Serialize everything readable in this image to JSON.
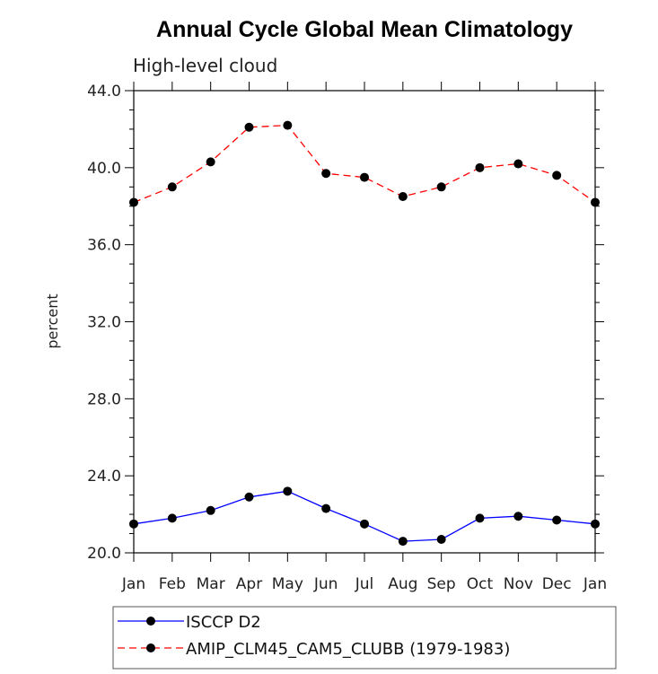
{
  "chart_data": {
    "type": "line",
    "title": "Annual Cycle Global Mean Climatology",
    "subtitle": "High-level cloud",
    "xlabel": "",
    "ylabel": "percent",
    "categories": [
      "Jan",
      "Feb",
      "Mar",
      "Apr",
      "May",
      "Jun",
      "Jul",
      "Aug",
      "Sep",
      "Oct",
      "Nov",
      "Dec",
      "Jan"
    ],
    "ylim": [
      20.0,
      44.0
    ],
    "yticks": [
      "20.0",
      "24.0",
      "28.0",
      "32.0",
      "36.0",
      "40.0",
      "44.0"
    ],
    "grid": false,
    "legend_position": "bottom",
    "series": [
      {
        "name": "ISCCP D2",
        "color": "#0000ff",
        "line_style": "solid",
        "marker": "filled-circle",
        "values": [
          21.5,
          21.8,
          22.2,
          22.9,
          23.2,
          22.3,
          21.5,
          20.6,
          20.7,
          21.8,
          21.9,
          21.7,
          21.5
        ]
      },
      {
        "name": "AMIP_CLM45_CAM5_CLUBB (1979-1983)",
        "color": "#ff0000",
        "line_style": "dashed",
        "marker": "filled-circle",
        "values": [
          38.2,
          39.0,
          40.3,
          42.1,
          42.2,
          39.7,
          39.5,
          38.5,
          39.0,
          40.0,
          40.2,
          39.6,
          38.2
        ]
      }
    ]
  }
}
